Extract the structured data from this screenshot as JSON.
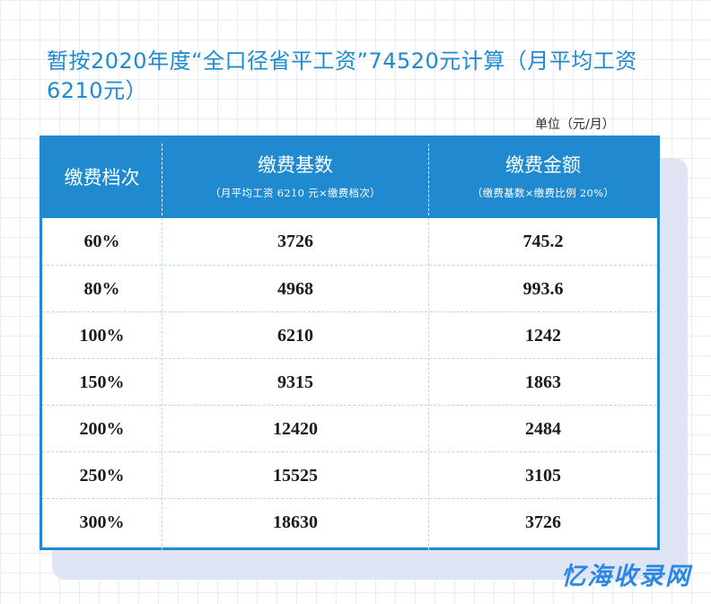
{
  "headline": "暂按2020年度“全口径省平工资”74520元计算（月平均工资6210元）",
  "unit_label": "单位（元/月）",
  "table": {
    "headers": [
      {
        "main": "缴费档次",
        "sub": ""
      },
      {
        "main": "缴费基数",
        "sub": "（月平均工资 6210 元×缴费档次）"
      },
      {
        "main": "缴费金额",
        "sub": "（缴费基数×缴费比例 20%）"
      }
    ],
    "rows": [
      [
        "60%",
        "3726",
        "745.2"
      ],
      [
        "80%",
        "4968",
        "993.6"
      ],
      [
        "100%",
        "6210",
        "1242"
      ],
      [
        "150%",
        "9315",
        "1863"
      ],
      [
        "200%",
        "12420",
        "2484"
      ],
      [
        "250%",
        "15525",
        "3105"
      ],
      [
        "300%",
        "18630",
        "3726"
      ]
    ]
  },
  "watermark": "忆海收录网",
  "colors": {
    "accent": "#1f8ad0",
    "watermark": "#2a87e8"
  }
}
